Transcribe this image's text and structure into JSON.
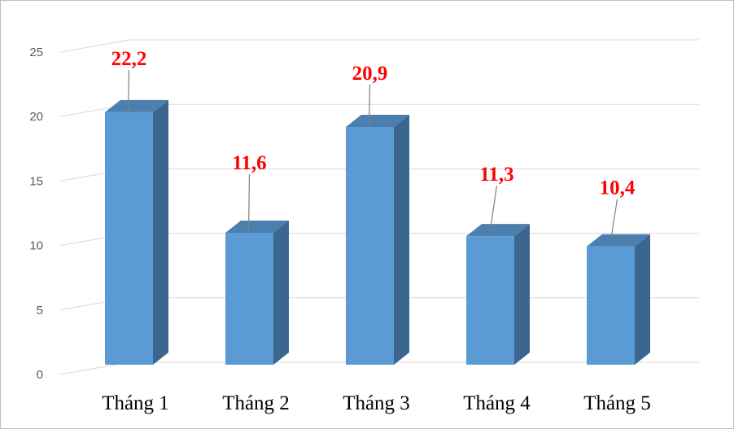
{
  "chart_data": {
    "type": "bar",
    "style": "3d-column",
    "categories": [
      "Tháng 1",
      "Tháng 2",
      "Tháng 3",
      "Tháng 4",
      "Tháng 5"
    ],
    "values": [
      22.2,
      11.6,
      20.9,
      11.3,
      10.4
    ],
    "data_labels": [
      "22,2",
      "11,6",
      "20,9",
      "11,3",
      "10,4"
    ],
    "y_ticks": [
      "0",
      "5",
      "10",
      "15",
      "20",
      "25"
    ],
    "ylim": [
      0,
      25
    ],
    "grid": true,
    "legend": "none",
    "title": "",
    "xlabel": "",
    "ylabel": "",
    "colors": {
      "bar_front": "#5b9bd5",
      "bar_side": "#3a6690",
      "bar_top": "#4a7fae",
      "data_label": "#ff0000",
      "gridline": "#d9d9d9",
      "leader_line": "#7f7f7f"
    }
  }
}
